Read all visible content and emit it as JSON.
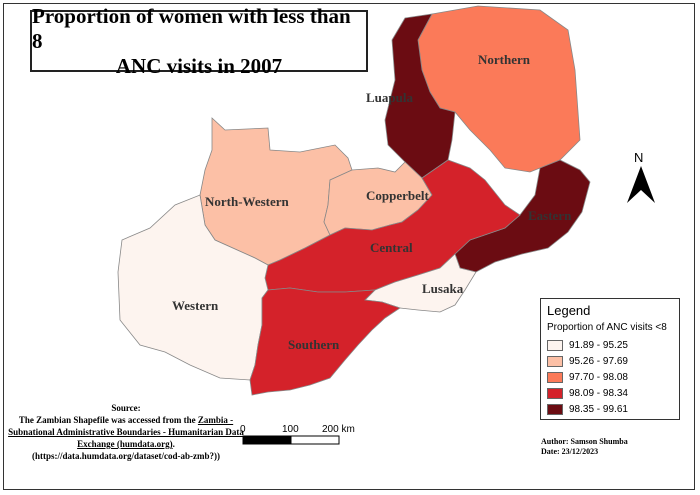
{
  "title_lines": [
    "Proportion of women with less than 8",
    "ANC visits in 2007"
  ],
  "regions": [
    {
      "name": "Northern",
      "range": "97.70 - 98.08",
      "color": "#fb7a59"
    },
    {
      "name": "Luapula",
      "range": "98.35 - 99.61",
      "color": "#6b0c12"
    },
    {
      "name": "Eastern",
      "range": "98.35 - 99.61",
      "color": "#6b0c12"
    },
    {
      "name": "North-Western",
      "range": "95.26 - 97.69",
      "color": "#fcc0a6"
    },
    {
      "name": "Copperbelt",
      "range": "95.26 - 97.69",
      "color": "#fcc0a6"
    },
    {
      "name": "Central",
      "range": "98.09 - 98.34",
      "color": "#d4222a"
    },
    {
      "name": "Western",
      "range": "91.89 - 95.25",
      "color": "#fdf4ef"
    },
    {
      "name": "Lusaka",
      "range": "91.89 - 95.25",
      "color": "#fdf4ef"
    },
    {
      "name": "Southern",
      "range": "98.09 - 98.34",
      "color": "#d4222a"
    }
  ],
  "north_arrow": "N",
  "legend": {
    "title": "Legend",
    "subtitle": "Proportion of ANC visits <8",
    "classes": [
      {
        "label": "91.89 - 95.25",
        "color": "#fdf4ef"
      },
      {
        "label": "95.26 - 97.69",
        "color": "#fcc0a6"
      },
      {
        "label": "97.70 - 98.08",
        "color": "#fb7a59"
      },
      {
        "label": "98.09 - 98.34",
        "color": "#d4222a"
      },
      {
        "label": "98.35 - 99.61",
        "color": "#6b0c12"
      }
    ]
  },
  "scale_bar": {
    "labels": [
      "0",
      "100",
      "200 km"
    ]
  },
  "source": {
    "heading": "Source:",
    "line1": "The Zambian Shapefile was accessed from the ",
    "link_text": "Zambia - Subnational Administrative Boundaries - Humanitarian Data Exchange (humdata.org)",
    "line_end": ".",
    "url": "(https://data.humdata.org/dataset/cod-ab-zmb?))"
  },
  "author": {
    "name": "Author: Samson Shumba",
    "date": "Date: 23/12/2023"
  }
}
